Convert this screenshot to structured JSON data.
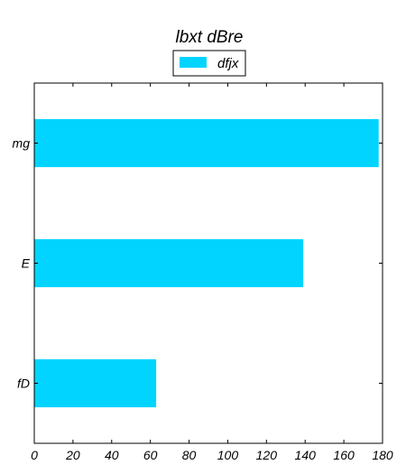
{
  "chart_data": {
    "type": "bar",
    "orientation": "horizontal",
    "title": "lbxt dBre",
    "xlabel": "",
    "ylabel": "",
    "categories": [
      "mg",
      "E",
      "fD"
    ],
    "series": [
      {
        "name": "dfjx",
        "values": [
          178,
          139,
          63
        ],
        "color": "#00d4ff"
      }
    ],
    "xlim": [
      0,
      180
    ],
    "xticks": [
      0,
      20,
      40,
      60,
      80,
      100,
      120,
      140,
      160,
      180
    ],
    "grid": false,
    "legend": "top-center"
  }
}
